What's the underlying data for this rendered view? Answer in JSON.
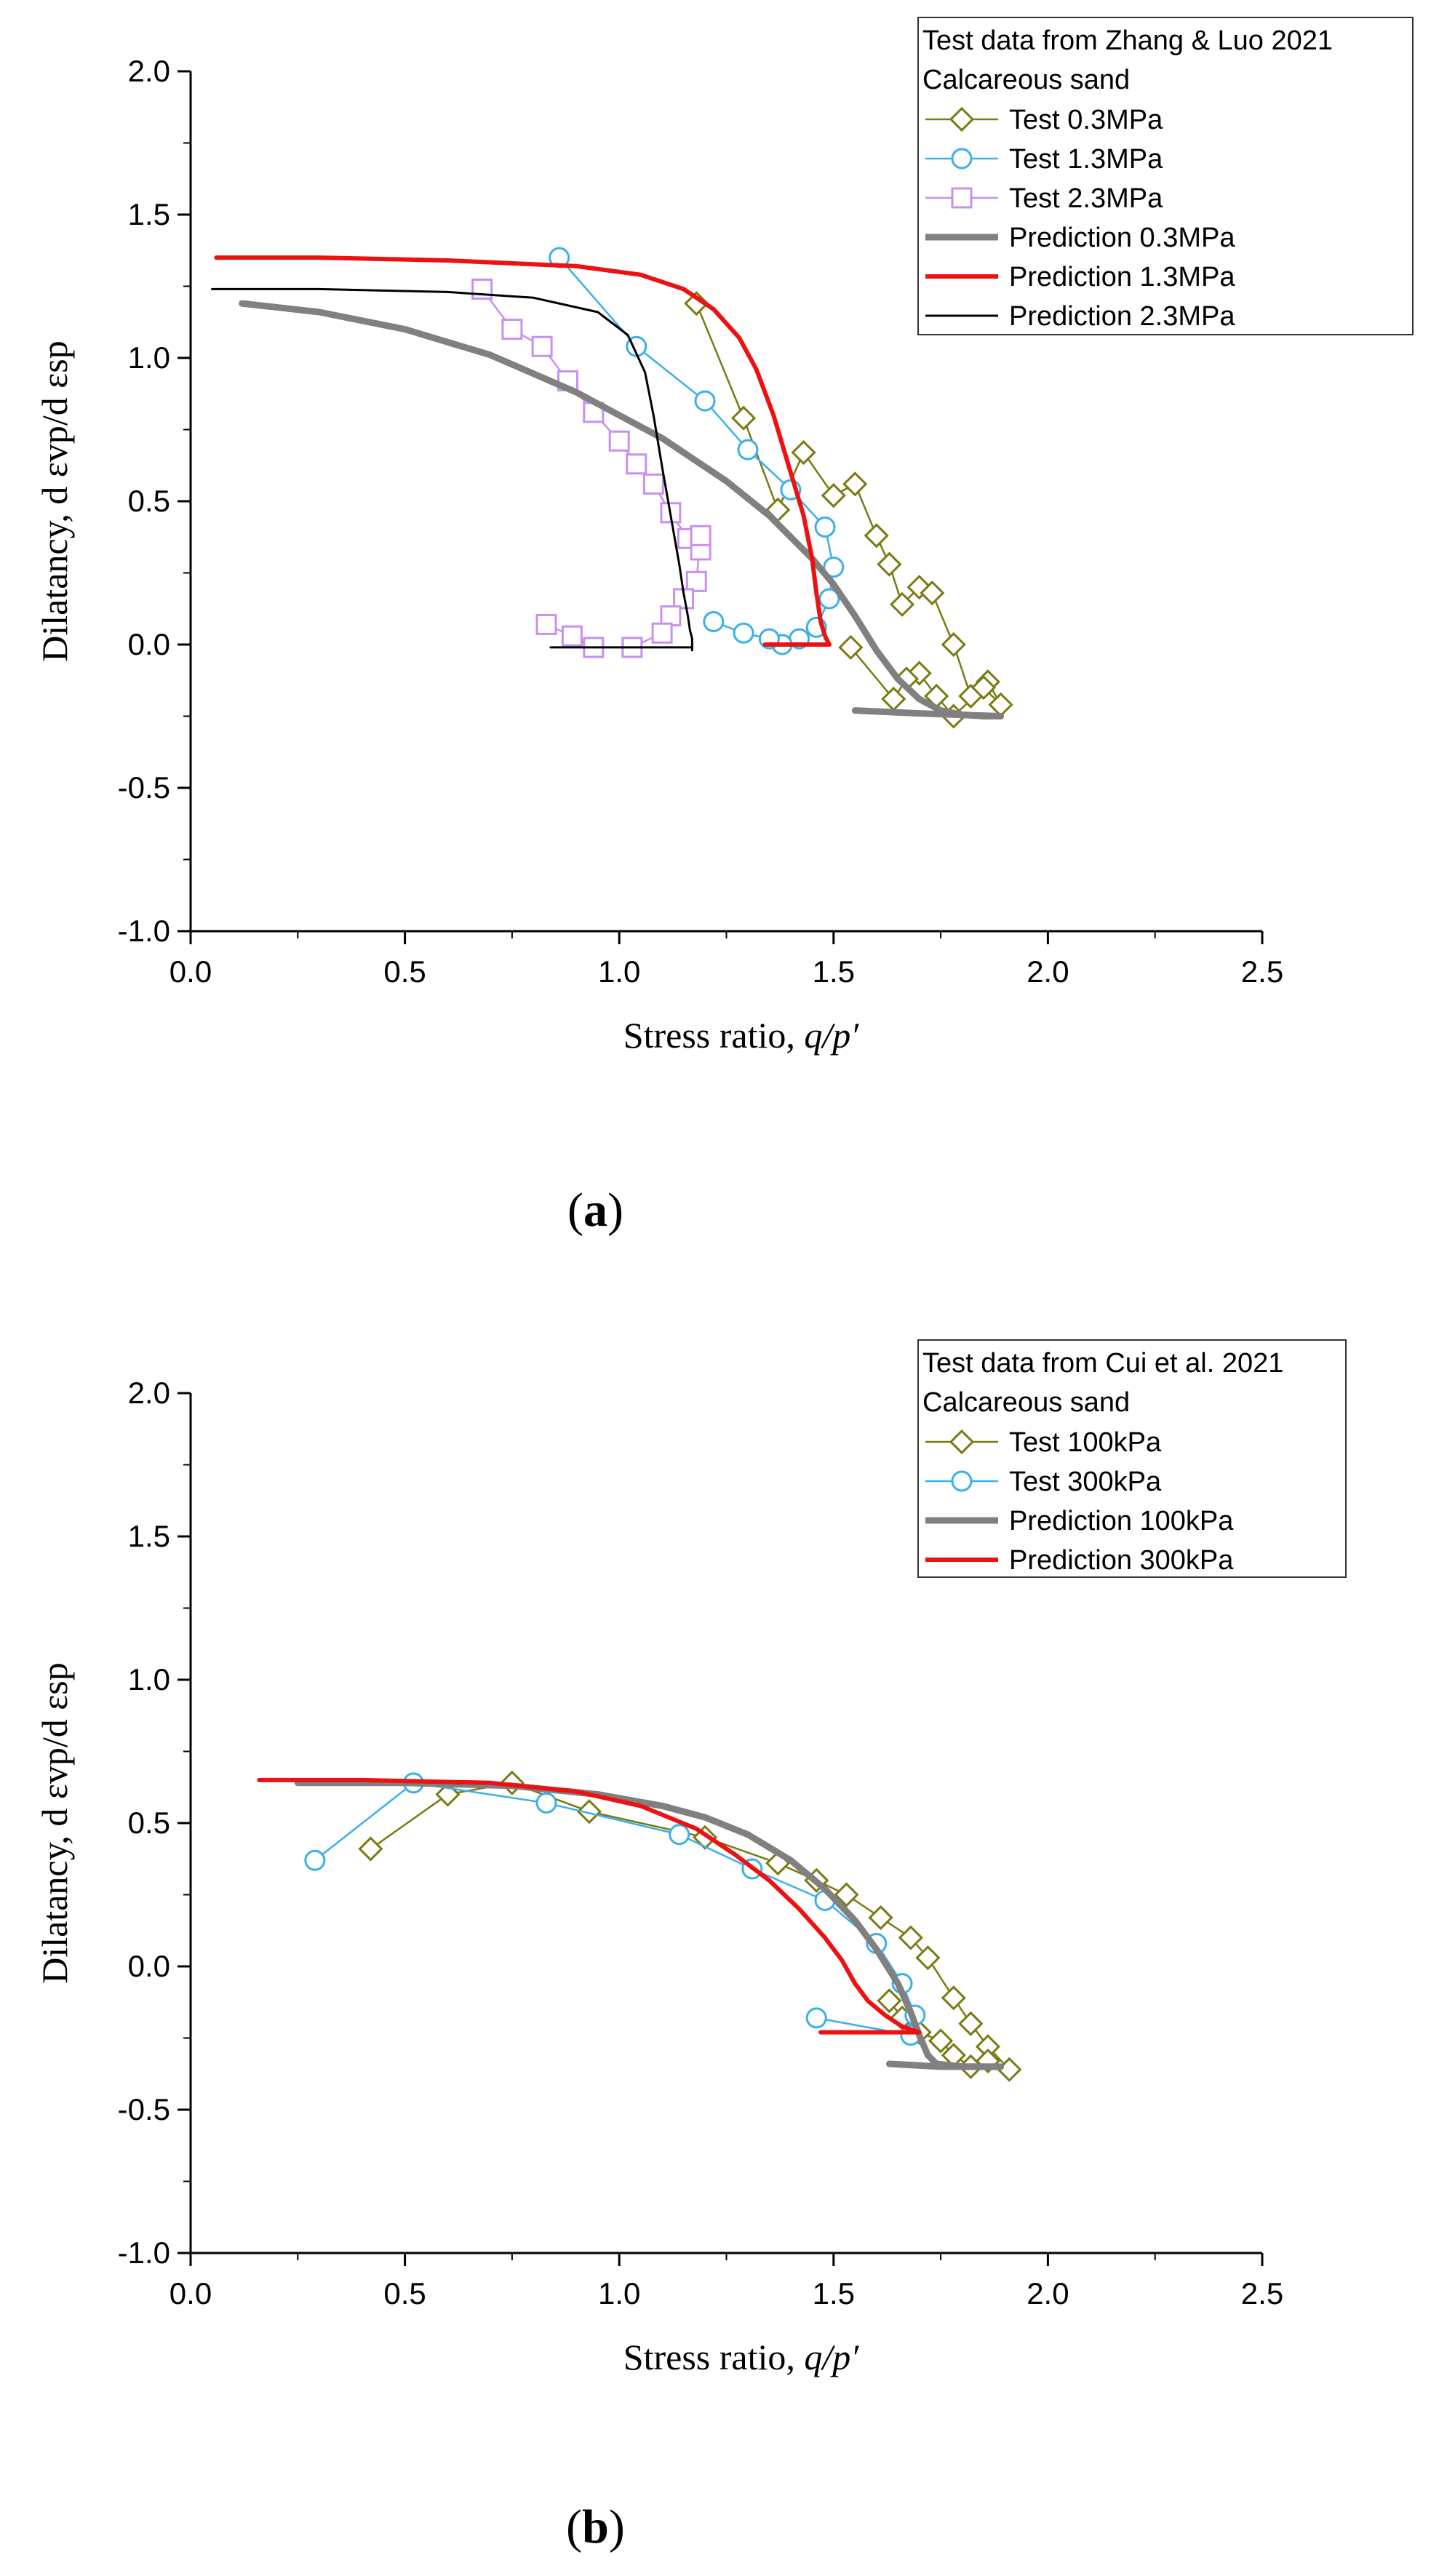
{
  "panels": [
    {
      "id": "a",
      "panel_label": "a",
      "xlabel": "Stress ratio,",
      "xlabel_var": "q/p′",
      "ylabel": "Dilatancy, d εvp/d εsp",
      "legend_title_1": "Test data from Zhang & Luo  2021",
      "legend_title_2": "Calcareous sand",
      "x_ticks": [
        "0.0",
        "0.5",
        "1.0",
        "1.5",
        "2.0",
        "2.5"
      ],
      "y_ticks": [
        "2.0",
        "1.5",
        "1.0",
        "0.5",
        "0.0",
        "-0.5",
        "-1.0"
      ]
    },
    {
      "id": "b",
      "panel_label": "b",
      "xlabel": "Stress ratio,",
      "xlabel_var": "q/p′",
      "ylabel": "Dilatancy, d εvp/d εsp",
      "legend_title_1": "Test data from Cui et al. 2021",
      "legend_title_2": "Calcareous sand",
      "x_ticks": [
        "0.0",
        "0.5",
        "1.0",
        "1.5",
        "2.0",
        "2.5"
      ],
      "y_ticks": [
        "2.0",
        "1.5",
        "1.0",
        "0.5",
        "0.0",
        "-0.5",
        "-1.0"
      ]
    }
  ],
  "chart_data": [
    {
      "type": "line",
      "panel": "a",
      "title": "",
      "xlabel": "Stress ratio, q/p′",
      "ylabel": "Dilatancy, d εvp/d εsp",
      "xlim": [
        0,
        2.5
      ],
      "ylim": [
        -1.0,
        2.0
      ],
      "x_major_step": 0.5,
      "y_major_step": 0.5,
      "legend_position": "top-right",
      "colors": {
        "olive": "#7a7a12",
        "blue": "#3ab0e8",
        "violet": "#c890f0",
        "gray": "#808080",
        "red": "#ee1111",
        "black": "#000000"
      },
      "series": [
        {
          "name": "Test 0.3MPa",
          "kind": "test",
          "marker": "diamond",
          "color": "#7a7a12",
          "x": [
            1.18,
            1.29,
            1.37,
            1.43,
            1.5,
            1.55,
            1.6,
            1.63,
            1.66,
            1.7,
            1.73,
            1.78,
            1.82,
            1.86,
            1.89,
            1.85,
            1.78,
            1.74,
            1.7,
            1.67,
            1.64,
            1.54
          ],
          "y": [
            1.19,
            0.79,
            0.47,
            0.67,
            0.52,
            0.56,
            0.38,
            0.28,
            0.14,
            0.2,
            0.18,
            0.0,
            -0.18,
            -0.13,
            -0.21,
            -0.15,
            -0.25,
            -0.18,
            -0.1,
            -0.12,
            -0.19,
            -0.01
          ]
        },
        {
          "name": "Test 1.3MPa",
          "kind": "test",
          "marker": "circle",
          "color": "#3ab0e8",
          "x": [
            0.86,
            1.04,
            1.2,
            1.3,
            1.4,
            1.48,
            1.5,
            1.49,
            1.46,
            1.42,
            1.38,
            1.35,
            1.29,
            1.22
          ],
          "y": [
            1.35,
            1.04,
            0.85,
            0.68,
            0.54,
            0.41,
            0.27,
            0.16,
            0.06,
            0.02,
            0.0,
            0.02,
            0.04,
            0.08
          ]
        },
        {
          "name": "Test 2.3MPa",
          "kind": "test",
          "marker": "square",
          "color": "#c890f0",
          "x": [
            0.68,
            0.75,
            0.82,
            0.88,
            0.94,
            1.0,
            1.04,
            1.08,
            1.12,
            1.16,
            1.19,
            1.19,
            1.18,
            1.15,
            1.12,
            1.1,
            1.03,
            0.94,
            0.89,
            0.83
          ],
          "y": [
            1.24,
            1.1,
            1.04,
            0.92,
            0.81,
            0.71,
            0.63,
            0.56,
            0.46,
            0.37,
            0.33,
            0.38,
            0.22,
            0.16,
            0.1,
            0.04,
            -0.01,
            -0.01,
            0.03,
            0.07
          ]
        },
        {
          "name": "Prediction 0.3MPa",
          "kind": "prediction",
          "color": "#808080",
          "width": 9,
          "x": [
            0.12,
            0.3,
            0.5,
            0.7,
            0.9,
            1.1,
            1.25,
            1.35,
            1.45,
            1.5,
            1.55,
            1.6,
            1.65,
            1.7,
            1.75,
            1.8,
            1.85,
            1.89
          ],
          "y": [
            1.19,
            1.16,
            1.1,
            1.01,
            0.88,
            0.72,
            0.57,
            0.45,
            0.3,
            0.21,
            0.1,
            -0.02,
            -0.12,
            -0.19,
            -0.23,
            -0.245,
            -0.25,
            -0.25
          ],
          "segment2": {
            "x": [
              1.55,
              1.7,
              1.89
            ],
            "y": [
              -0.23,
              -0.24,
              -0.25
            ]
          }
        },
        {
          "name": "Prediction 1.3MPa",
          "kind": "prediction",
          "color": "#ee1111",
          "width": 6,
          "x": [
            0.06,
            0.3,
            0.6,
            0.9,
            1.05,
            1.15,
            1.22,
            1.28,
            1.32,
            1.36,
            1.39,
            1.41,
            1.43,
            1.45,
            1.46,
            1.47,
            1.48,
            1.49
          ],
          "y": [
            1.35,
            1.35,
            1.34,
            1.32,
            1.29,
            1.24,
            1.17,
            1.07,
            0.96,
            0.8,
            0.65,
            0.55,
            0.45,
            0.3,
            0.18,
            0.08,
            0.03,
            0.0
          ],
          "segment2": {
            "x": [
              1.34,
              1.49
            ],
            "y": [
              0.0,
              0.0
            ]
          }
        },
        {
          "name": "Prediction 2.3MPa",
          "kind": "prediction",
          "color": "#000000",
          "width": 3,
          "x": [
            0.05,
            0.3,
            0.6,
            0.8,
            0.95,
            1.02,
            1.06,
            1.08,
            1.1,
            1.12,
            1.14,
            1.15,
            1.16,
            1.165,
            1.17,
            1.17
          ],
          "y": [
            1.24,
            1.24,
            1.23,
            1.21,
            1.16,
            1.08,
            0.95,
            0.8,
            0.62,
            0.45,
            0.28,
            0.18,
            0.1,
            0.05,
            0.02,
            -0.02
          ],
          "segment2": {
            "x": [
              0.84,
              1.17
            ],
            "y": [
              -0.01,
              -0.01
            ]
          }
        }
      ]
    },
    {
      "type": "line",
      "panel": "b",
      "title": "",
      "xlabel": "Stress ratio, q/p′",
      "ylabel": "Dilatancy, d εvp/d εsp",
      "xlim": [
        0,
        2.5
      ],
      "ylim": [
        -1.0,
        2.0
      ],
      "x_major_step": 0.5,
      "y_major_step": 0.5,
      "legend_position": "top-right",
      "series": [
        {
          "name": "Test 100kPa",
          "kind": "test",
          "marker": "diamond",
          "color": "#7a7a12",
          "x": [
            0.42,
            0.6,
            0.75,
            0.93,
            1.2,
            1.37,
            1.46,
            1.53,
            1.61,
            1.68,
            1.72,
            1.78,
            1.82,
            1.86,
            1.91,
            1.86,
            1.82,
            1.78,
            1.75,
            1.7,
            1.66,
            1.63
          ],
          "y": [
            0.41,
            0.6,
            0.64,
            0.54,
            0.45,
            0.36,
            0.3,
            0.25,
            0.17,
            0.1,
            0.03,
            -0.11,
            -0.2,
            -0.28,
            -0.36,
            -0.33,
            -0.35,
            -0.31,
            -0.26,
            -0.23,
            -0.18,
            -0.12
          ]
        },
        {
          "name": "Test 300kPa",
          "kind": "test",
          "marker": "circle",
          "color": "#3ab0e8",
          "x": [
            0.29,
            0.52,
            0.83,
            1.14,
            1.31,
            1.48,
            1.6,
            1.66,
            1.69,
            1.68,
            1.46
          ],
          "y": [
            0.37,
            0.64,
            0.57,
            0.46,
            0.34,
            0.23,
            0.08,
            -0.06,
            -0.17,
            -0.24,
            -0.18
          ]
        },
        {
          "name": "Prediction 100kPa",
          "kind": "prediction",
          "color": "#808080",
          "width": 9,
          "x": [
            0.25,
            0.5,
            0.75,
            0.95,
            1.1,
            1.2,
            1.3,
            1.4,
            1.48,
            1.55,
            1.6,
            1.65,
            1.68,
            1.7,
            1.72,
            1.74,
            1.8,
            1.89
          ],
          "y": [
            0.64,
            0.64,
            0.63,
            0.6,
            0.56,
            0.52,
            0.46,
            0.37,
            0.27,
            0.16,
            0.06,
            -0.06,
            -0.16,
            -0.24,
            -0.31,
            -0.34,
            -0.35,
            -0.35
          ],
          "segment2": {
            "x": [
              1.63,
              1.75,
              1.89
            ],
            "y": [
              -0.34,
              -0.35,
              -0.35
            ]
          }
        },
        {
          "name": "Prediction 300kPa",
          "kind": "prediction",
          "color": "#ee1111",
          "width": 6,
          "x": [
            0.16,
            0.4,
            0.7,
            0.9,
            1.05,
            1.18,
            1.27,
            1.35,
            1.42,
            1.48,
            1.52,
            1.55,
            1.58,
            1.62,
            1.66,
            1.7
          ],
          "y": [
            0.65,
            0.65,
            0.64,
            0.61,
            0.56,
            0.48,
            0.39,
            0.3,
            0.2,
            0.1,
            0.02,
            -0.06,
            -0.12,
            -0.17,
            -0.21,
            -0.23
          ],
          "segment2": {
            "x": [
              1.47,
              1.7
            ],
            "y": [
              -0.23,
              -0.23
            ]
          }
        }
      ]
    }
  ]
}
